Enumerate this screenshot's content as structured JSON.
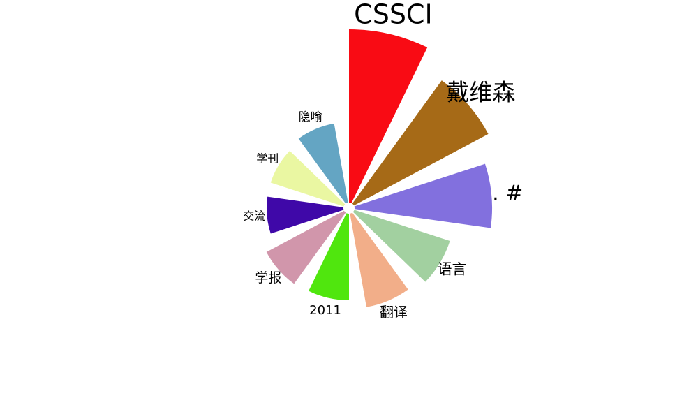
{
  "chart_data": {
    "type": "rose",
    "title": "",
    "categories": [
      "CSSCI",
      "戴维森",
      ". #",
      "语言",
      "翻译",
      "2011",
      "学报",
      "交流",
      "学刊",
      "隐喻"
    ],
    "values": [
      248,
      218,
      197,
      144,
      136,
      124,
      126,
      110,
      110,
      115
    ],
    "colors": [
      "#F90B14",
      "#A66A17",
      "#8270DE",
      "#A2D0A0",
      "#F2AE89",
      "#50E60E",
      "#D196AB",
      "#3F08A8",
      "#EAF7A2",
      "#64A5C3"
    ]
  }
}
